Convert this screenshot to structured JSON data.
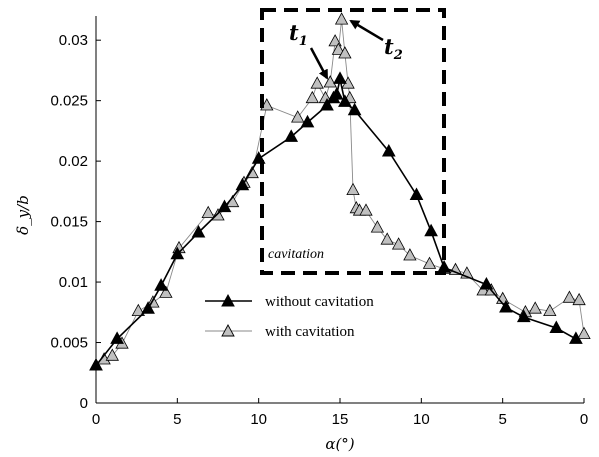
{
  "chart_data": {
    "type": "line",
    "xlabel": "α(°)",
    "ylabel": "δ_y/b",
    "x_tick_labels": [
      "0",
      "5",
      "10",
      "15",
      "10",
      "5",
      "0"
    ],
    "y_tick_labels": [
      "0",
      "0.005",
      "0.01",
      "0.015",
      "0.02",
      "0.025",
      "0.03"
    ],
    "xlim": [
      0,
      30
    ],
    "ylim": [
      0,
      0.032
    ],
    "grid": false,
    "legend_position": "center-left",
    "series": [
      {
        "name": "without cavitation",
        "color": "#000000",
        "marker": "filled-triangle",
        "x": [
          0,
          1.3,
          3.2,
          4.0,
          5.0,
          6.3,
          7.9,
          9.0,
          10.0,
          12.0,
          13.0,
          14.2,
          14.6,
          14.8,
          15.0,
          15.3,
          15.9,
          18.0,
          19.7,
          20.6,
          21.4,
          24.0,
          25.2,
          26.3,
          28.3,
          29.5
        ],
        "y": [
          0.0031,
          0.0053,
          0.0078,
          0.0097,
          0.0123,
          0.0141,
          0.0162,
          0.018,
          0.0202,
          0.022,
          0.0232,
          0.0246,
          0.0252,
          0.0255,
          0.0268,
          0.0249,
          0.0242,
          0.0208,
          0.0172,
          0.0142,
          0.0112,
          0.0098,
          0.0079,
          0.0071,
          0.0062,
          0.0053
        ]
      },
      {
        "name": "with cavitation",
        "color": "#888888",
        "marker": "gray-triangle",
        "x": [
          0,
          0.5,
          1.0,
          1.6,
          2.6,
          3.5,
          4.3,
          5.1,
          6.9,
          7.5,
          8.4,
          9.1,
          9.6,
          10.5,
          12.4,
          13.3,
          13.6,
          14.1,
          14.4,
          14.7,
          14.9,
          15.1,
          15.3,
          15.5,
          15.6,
          15.8,
          16.0,
          16.2,
          16.6,
          17.3,
          17.9,
          18.6,
          19.3,
          20.5,
          21.4,
          22.1,
          22.8,
          23.8,
          24.3,
          25.0,
          26.4,
          27.0,
          27.9,
          29.1,
          29.7,
          30.0
        ],
        "y": [
          0.0031,
          0.0036,
          0.0039,
          0.0049,
          0.0076,
          0.0083,
          0.0091,
          0.0128,
          0.0157,
          0.0155,
          0.0166,
          0.0182,
          0.019,
          0.0246,
          0.0236,
          0.0252,
          0.0264,
          0.0252,
          0.0265,
          0.0299,
          0.0292,
          0.0317,
          0.0289,
          0.0264,
          0.0252,
          0.0176,
          0.0161,
          0.0159,
          0.0159,
          0.0145,
          0.0135,
          0.0131,
          0.0122,
          0.0115,
          0.0111,
          0.011,
          0.0107,
          0.0093,
          0.0093,
          0.0086,
          0.0075,
          0.0078,
          0.0076,
          0.0087,
          0.0085,
          0.0057
        ]
      }
    ],
    "annotations": [
      {
        "base": "t",
        "sub": "1"
      },
      {
        "base": "t",
        "sub": "2"
      },
      {
        "text": "cavitation"
      }
    ]
  }
}
